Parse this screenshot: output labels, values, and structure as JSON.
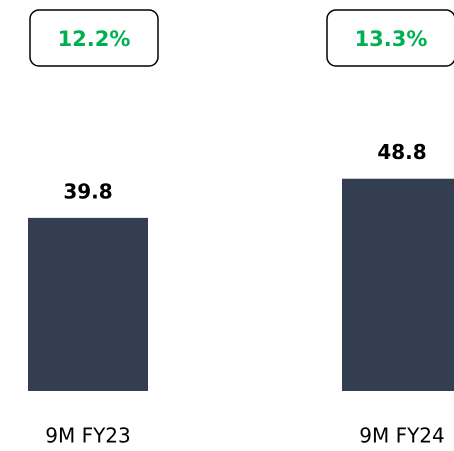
{
  "chart_data": {
    "type": "bar",
    "categories": [
      "9M FY23",
      "9M FY24"
    ],
    "values": [
      39.8,
      48.8
    ],
    "annotations": [
      "12.2%",
      "13.3%"
    ],
    "color": "#333f50",
    "annotation_color": "#00b050",
    "ylim": [
      0,
      50
    ]
  }
}
